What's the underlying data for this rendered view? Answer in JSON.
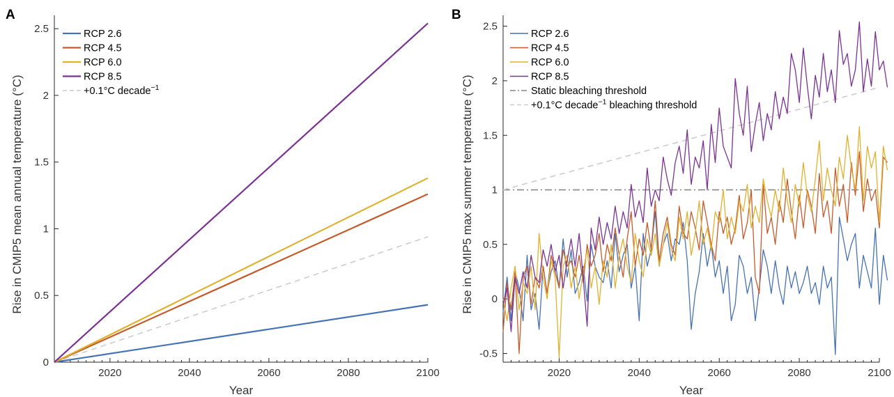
{
  "chart_data": [
    {
      "panel": "A",
      "type": "line",
      "xlabel": "Year",
      "ylabel": "Rise in CMIP5 mean annual temperature (°C)",
      "xlim": [
        2006,
        2100
      ],
      "ylim": [
        0,
        2.6
      ],
      "xticks": [
        2020,
        2040,
        2060,
        2080,
        2100
      ],
      "yticks": [
        0,
        0.5,
        1,
        1.5,
        2,
        2.5
      ],
      "ytick_labels": [
        "0",
        "0.5",
        "1",
        "1.5",
        "2",
        "2.5"
      ],
      "grid": false,
      "legend_position": "top-left",
      "series": [
        {
          "name": "RCP 2.6",
          "color": "#4472b4",
          "dash": "solid",
          "x": [
            2006,
            2100
          ],
          "y": [
            0,
            0.43
          ]
        },
        {
          "name": "RCP 4.5",
          "color": "#c55a2b",
          "dash": "solid",
          "x": [
            2006,
            2100
          ],
          "y": [
            0,
            1.26
          ]
        },
        {
          "name": "RCP 6.0",
          "color": "#e0b12f",
          "dash": "solid",
          "x": [
            2006,
            2100
          ],
          "y": [
            0,
            1.38
          ]
        },
        {
          "name": "RCP 8.5",
          "color": "#7b3294",
          "dash": "solid",
          "x": [
            2006,
            2100
          ],
          "y": [
            0,
            2.54
          ]
        },
        {
          "name": "+0.1°C decade",
          "name_sup": "−1",
          "color": "#cccccc",
          "dash": "dashed",
          "x": [
            2006,
            2100
          ],
          "y": [
            0,
            0.94
          ]
        }
      ]
    },
    {
      "panel": "B",
      "type": "line",
      "xlabel": "Year",
      "ylabel": "Rise in CMIP5 max summer temperature (°C)",
      "xlim": [
        2006,
        2100
      ],
      "ylim": [
        -0.58,
        2.6
      ],
      "xticks": [
        2020,
        2040,
        2060,
        2080,
        2100
      ],
      "yticks": [
        -0.5,
        0,
        0.5,
        1,
        1.5,
        2,
        2.5
      ],
      "ytick_labels": [
        "-0.5",
        "0",
        "0.5",
        "1",
        "1.5",
        "2",
        "2.5"
      ],
      "grid": false,
      "legend_position": "top-left",
      "series": [
        {
          "name": "RCP 2.6",
          "color": "#4472b4",
          "dash": "solid",
          "x_start": 2006,
          "y": [
            -0.12,
            0.2,
            -0.2,
            0.25,
            0.1,
            -0.2,
            0.4,
            -0.1,
            0.05,
            -0.28,
            0.3,
            0.05,
            0.25,
            0.35,
            0.1,
            0.55,
            0.2,
            0.45,
            0.05,
            0.15,
            0.3,
            -0.02,
            0.5,
            0.3,
            0.2,
            0.15,
            0.35,
            0.1,
            0.6,
            0.25,
            0.4,
            0.5,
            0.1,
            0.3,
            -0.2,
            0.6,
            0.3,
            0.45,
            0.8,
            0.3,
            0.5,
            0.6,
            0.35,
            0.55,
            0.5,
            0.7,
            0.35,
            -0.28,
            0.05,
            0.25,
            0.6,
            0.3,
            0.5,
            0.2,
            0.35,
            0.05,
            0.3,
            -0.2,
            -0.05,
            0.4,
            0.3,
            0.05,
            0.2,
            -0.2,
            0.1,
            0.45,
            0.3,
            0.05,
            0.35,
            0.1,
            -0.05,
            0.3,
            0.1,
            0.25,
            0.05,
            0.15,
            0.3,
            0.05,
            0.15,
            -0.05,
            0.3,
            0.1,
            0.2,
            -0.51,
            0.75,
            0.55,
            0.35,
            0.5,
            0.6,
            0.1,
            0.4,
            0.25,
            0.1,
            0.65,
            -0.05,
            0.4,
            0.17
          ]
        },
        {
          "name": "RCP 4.5",
          "color": "#c55a2b",
          "dash": "solid",
          "x_start": 2006,
          "y": [
            -0.3,
            0.15,
            -0.1,
            0.25,
            -0.5,
            0.2,
            0.3,
            -0.05,
            0.2,
            0.1,
            0.3,
            0.05,
            0.4,
            0.25,
            0.1,
            0.45,
            0.3,
            0.35,
            0.2,
            0.4,
            0.15,
            0.5,
            0.3,
            0.4,
            0.6,
            0.25,
            0.5,
            0.35,
            0.65,
            0.4,
            0.2,
            0.55,
            0.8,
            0.3,
            0.55,
            0.4,
            0.7,
            0.45,
            0.9,
            0.35,
            0.6,
            0.75,
            0.5,
            0.4,
            0.85,
            0.6,
            0.55,
            0.8,
            0.65,
            0.45,
            0.9,
            0.7,
            0.5,
            0.35,
            0.8,
            0.6,
            0.75,
            0.5,
            0.65,
            0.95,
            0.55,
            0.7,
            1.0,
            0.2,
            0.05,
            1.05,
            0.6,
            0.75,
            0.5,
            0.9,
            0.7,
            1.1,
            0.8,
            0.55,
            0.95,
            0.65,
            1.0,
            0.85,
            0.6,
            1.15,
            0.75,
            0.9,
            0.6,
            1.2,
            0.85,
            1.05,
            0.7,
            1.25,
            0.95,
            1.35,
            0.8,
            1.1,
            0.9,
            1.0,
            0.65,
            1.3,
            1.25
          ]
        },
        {
          "name": "RCP 6.0",
          "color": "#e0b12f",
          "dash": "solid",
          "x_start": 2006,
          "y": [
            0.0,
            -0.2,
            0.1,
            0.3,
            -0.1,
            0.15,
            0.05,
            0.3,
            -0.1,
            0.6,
            0.2,
            0.0,
            0.35,
            0.2,
            -0.54,
            0.3,
            0.4,
            0.1,
            0.3,
            0.0,
            0.25,
            0.45,
            0.1,
            0.3,
            -0.05,
            0.35,
            0.2,
            0.5,
            0.1,
            0.4,
            0.55,
            0.3,
            0.15,
            0.6,
            0.35,
            0.2,
            0.55,
            0.4,
            0.6,
            0.3,
            0.5,
            0.7,
            0.45,
            0.35,
            0.75,
            0.55,
            0.8,
            0.4,
            0.6,
            0.9,
            0.5,
            0.65,
            0.45,
            0.8,
            0.7,
            1.0,
            0.55,
            0.75,
            0.6,
            0.9,
            0.8,
            1.05,
            0.65,
            0.85,
            0.7,
            1.1,
            0.9,
            0.75,
            1.0,
            0.8,
            1.2,
            0.9,
            0.7,
            1.05,
            0.85,
            1.25,
            0.95,
            0.8,
            1.1,
            1.45,
            0.9,
            1.2,
            1.0,
            0.85,
            1.3,
            1.1,
            1.5,
            1.2,
            1.0,
            1.58,
            0.9,
            1.4,
            1.2,
            1.35,
            0.7,
            1.4,
            1.18
          ]
        },
        {
          "name": "RCP 8.5",
          "color": "#7b3294",
          "dash": "solid",
          "x_start": 2006,
          "y": [
            -0.05,
            0.1,
            -0.3,
            0.2,
            0.05,
            0.25,
            0.1,
            0.4,
            0.2,
            0.15,
            0.45,
            0.3,
            0.5,
            0.25,
            0.4,
            0.1,
            0.35,
            0.55,
            0.3,
            0.6,
            0.2,
            -0.25,
            0.65,
            0.45,
            0.75,
            0.5,
            0.7,
            0.55,
            0.85,
            0.6,
            0.8,
            0.65,
            1.05,
            0.75,
            0.9,
            0.7,
            1.2,
            0.85,
            1.0,
            0.9,
            1.3,
            1.1,
            0.95,
            1.25,
            1.4,
            1.15,
            1.55,
            1.05,
            1.3,
            1.2,
            1.45,
            1.0,
            1.6,
            1.25,
            1.75,
            1.4,
            1.3,
            1.2,
            2.02,
            1.7,
            1.5,
            1.95,
            1.35,
            1.6,
            1.8,
            1.45,
            1.7,
            1.55,
            1.9,
            1.65,
            1.85,
            1.7,
            2.25,
            2.1,
            1.8,
            2.3,
            1.95,
            1.65,
            2.05,
            1.85,
            2.25,
            1.9,
            2.1,
            1.8,
            2.46,
            2.15,
            2.25,
            1.95,
            2.1,
            2.54,
            1.9,
            2.2,
            1.95,
            2.45,
            2.1,
            2.18,
            1.94
          ]
        },
        {
          "name": "Static bleaching threshold",
          "color": "#888888",
          "dash": "dashdot",
          "x": [
            2006,
            2100
          ],
          "y": [
            1.0,
            1.0
          ]
        },
        {
          "name": "+0.1°C decade",
          "name_sup": "−1",
          "name_suffix": " bleaching threshold",
          "color": "#cccccc",
          "dash": "dashed",
          "x": [
            2006,
            2100
          ],
          "y": [
            1.0,
            1.94
          ]
        }
      ]
    }
  ]
}
